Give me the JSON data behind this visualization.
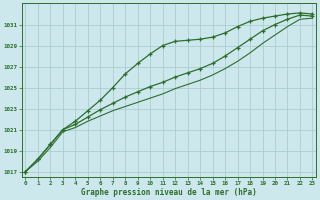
{
  "background_color": "#cce8ec",
  "grid_color": "#a8c8cc",
  "line_color": "#2d6e2d",
  "xlabel": "Graphe pression niveau de la mer (hPa)",
  "ylim": [
    1016.5,
    1033.0
  ],
  "xlim": [
    -0.3,
    23.3
  ],
  "yticks": [
    1017,
    1019,
    1021,
    1023,
    1025,
    1027,
    1029,
    1031
  ],
  "xticks": [
    0,
    1,
    2,
    3,
    4,
    5,
    6,
    7,
    8,
    9,
    10,
    11,
    12,
    13,
    14,
    15,
    16,
    17,
    18,
    19,
    20,
    21,
    22,
    23
  ],
  "series1": [
    1017.0,
    1018.2,
    1019.6,
    1021.0,
    1021.8,
    1022.8,
    1023.8,
    1025.0,
    1026.3,
    1027.3,
    1028.2,
    1029.0,
    1029.4,
    1029.5,
    1029.6,
    1029.8,
    1030.2,
    1030.8,
    1031.3,
    1031.6,
    1031.8,
    1032.0,
    1032.1,
    1032.0
  ],
  "series2": [
    1017.0,
    1018.2,
    1019.6,
    1021.0,
    1021.5,
    1022.2,
    1022.9,
    1023.5,
    1024.1,
    1024.6,
    1025.1,
    1025.5,
    1026.0,
    1026.4,
    1026.8,
    1027.3,
    1028.0,
    1028.8,
    1029.6,
    1030.4,
    1031.0,
    1031.5,
    1031.9,
    1031.8
  ],
  "series3": [
    1017.0,
    1018.0,
    1019.3,
    1020.8,
    1021.2,
    1021.8,
    1022.3,
    1022.8,
    1023.2,
    1023.6,
    1024.0,
    1024.4,
    1024.9,
    1025.3,
    1025.7,
    1026.2,
    1026.8,
    1027.5,
    1028.3,
    1029.2,
    1030.0,
    1030.8,
    1031.5,
    1031.6
  ]
}
